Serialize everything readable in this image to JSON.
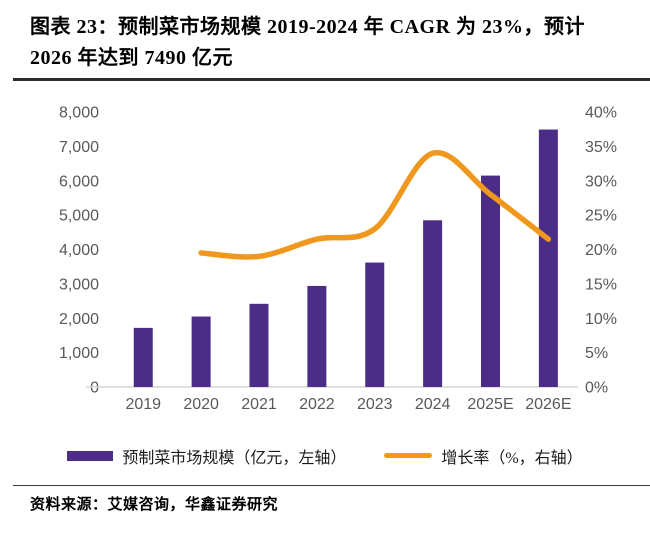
{
  "figure": {
    "title_line1": "图表 23：预制菜市场规模 2019-2024 年 CAGR 为 23%，预计",
    "title_line2": "2026 年达到 7490 亿元",
    "title_full": "图表 23：预制菜市场规模 2019-2024 年 CAGR 为 23%，预计 2026 年达到 7490 亿元",
    "source": "资料来源：艾媒咨询，华鑫证券研究"
  },
  "chart_data": {
    "type": "combo",
    "title": "预制菜市场规模 2019-2024 年 CAGR 为 23%，预计 2026 年达到 7490 亿元",
    "categories": [
      "2019",
      "2020",
      "2021",
      "2022",
      "2023",
      "2024",
      "2025E",
      "2026E"
    ],
    "series": [
      {
        "name": "预制菜市场规模（亿元，左轴）",
        "type": "bar",
        "axis": "left",
        "color": "#4B2C86",
        "values": [
          1720,
          2050,
          2420,
          2940,
          3620,
          4850,
          6150,
          7490
        ]
      },
      {
        "name": "增长率（%，右轴）",
        "type": "line",
        "axis": "right",
        "color": "#F0981D",
        "values": [
          null,
          19.5,
          19,
          21.5,
          23,
          34,
          28,
          21.5
        ]
      }
    ],
    "left_axis": {
      "min": 0,
      "max": 8000,
      "step": 1000
    },
    "right_axis": {
      "min": 0,
      "max": 40,
      "step": 5,
      "suffix": "%"
    },
    "legend_position": "bottom",
    "grid": false
  },
  "colors": {
    "bar": "#4B2C86",
    "line": "#F0981D",
    "axis_text": "#595959",
    "baseline": "#D6D6D6"
  }
}
